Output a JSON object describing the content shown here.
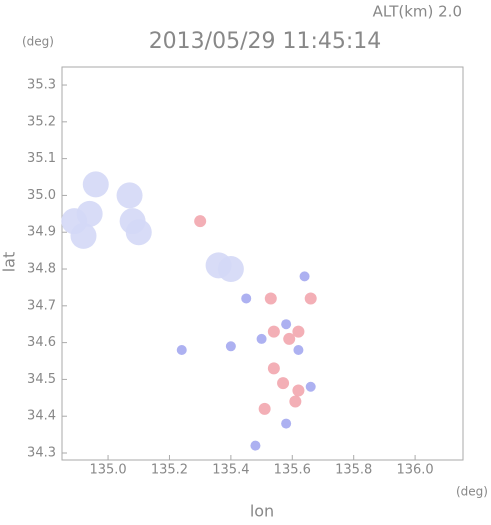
{
  "chart_data": {
    "type": "scatter",
    "title": "2013/05/29 11:45:14",
    "subtitle": "ALT(km) 2.0",
    "y_unit": "(deg)",
    "x_unit": "(deg)",
    "xlabel": "lon",
    "ylabel": "lat",
    "xlim": [
      134.85,
      136.156
    ],
    "ylim": [
      34.281,
      35.349
    ],
    "xticks": [
      {
        "value": 135,
        "label": "135.0"
      },
      135.2,
      135.4,
      135.6,
      135.8,
      {
        "value": 136,
        "label": "136.0"
      }
    ],
    "yticks": [
      34.3,
      34.4,
      34.5,
      34.6,
      34.7,
      34.8,
      {
        "value": 34.9,
        "label": "34.9"
      },
      {
        "value": 35,
        "label": "35.0"
      },
      35.1,
      35.2,
      35.3
    ],
    "grid": false,
    "series": [
      {
        "color": "#d4d8f6",
        "x": [
          134.89,
          134.94,
          134.92,
          134.96,
          135.07,
          135.08,
          135.1,
          135.36,
          135.4
        ],
        "y": [
          34.93,
          34.95,
          34.89,
          35.03,
          35.0,
          34.93,
          34.9,
          34.81,
          34.8
        ]
      },
      {
        "color": "#f2a6ae",
        "x": [
          135.3,
          135.53,
          135.54,
          135.59,
          135.62,
          135.54,
          135.57,
          135.61,
          135.51,
          135.62,
          135.66
        ],
        "y": [
          34.93,
          34.72,
          34.63,
          34.61,
          34.63,
          34.53,
          34.49,
          34.44,
          34.42,
          34.47,
          34.72
        ]
      },
      {
        "color": "#a4a8f0",
        "x": [
          135.24,
          135.4,
          135.64,
          135.58,
          135.5,
          135.62,
          135.66,
          135.58,
          135.48,
          135.45
        ],
        "y": [
          34.58,
          34.59,
          34.78,
          34.65,
          34.61,
          34.58,
          34.48,
          34.38,
          34.32,
          34.72
        ]
      }
    ]
  }
}
